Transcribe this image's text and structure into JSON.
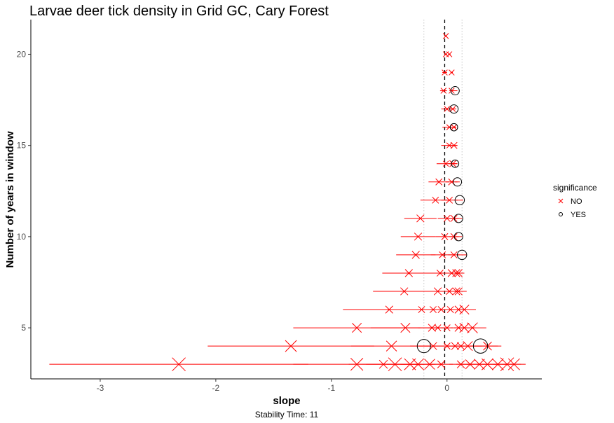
{
  "chart_data": {
    "type": "scatter",
    "title": "Larvae deer tick density in Grid GC, Cary Forest",
    "xlabel": "slope",
    "ylabel": "Number of years in window",
    "caption": "Stability Time: 11",
    "xlim": [
      -3.6,
      0.82
    ],
    "ylim": [
      2.2,
      21.9
    ],
    "x_ticks": [
      -3,
      -2,
      -1,
      0
    ],
    "x_tick_labels": [
      "-3",
      "-2",
      "-1",
      "0"
    ],
    "y_ticks": [
      5,
      10,
      15,
      20
    ],
    "y_tick_labels": [
      "5",
      "10",
      "15",
      "20"
    ],
    "reference_line": -0.02,
    "dotted_lines": [
      -0.2,
      0.13
    ],
    "legend": {
      "title": "significance",
      "placement": "right",
      "entries": [
        {
          "label": "NO",
          "shape": "x",
          "color": "#ff0000"
        },
        {
          "label": "YES",
          "shape": "circle",
          "color": "#000000"
        }
      ]
    },
    "series": [
      {
        "name": "NO",
        "points": [
          {
            "y": 21,
            "slope": -0.01,
            "se": 0.01,
            "size": 0.2
          },
          {
            "y": 20,
            "slope": -0.01,
            "se": 0.01,
            "size": 0.2
          },
          {
            "y": 20,
            "slope": 0.02,
            "se": 0.01,
            "size": 0.2
          },
          {
            "y": 19,
            "slope": -0.02,
            "se": 0.02,
            "size": 0.2
          },
          {
            "y": 19,
            "slope": 0.04,
            "se": 0.01,
            "size": 0.2
          },
          {
            "y": 18,
            "slope": -0.03,
            "se": 0.03,
            "size": 0.2
          },
          {
            "y": 18,
            "slope": 0.04,
            "se": 0.02,
            "size": 0.2
          },
          {
            "y": 17,
            "slope": 0.0,
            "se": 0.05,
            "size": 0.2
          },
          {
            "y": 17,
            "slope": 0.05,
            "se": 0.02,
            "size": 0.2
          },
          {
            "y": 16,
            "slope": 0.02,
            "se": 0.06,
            "size": 0.2
          },
          {
            "y": 16,
            "slope": 0.06,
            "se": 0.02,
            "size": 0.2
          },
          {
            "y": 15,
            "slope": 0.02,
            "se": 0.07,
            "size": 0.2
          },
          {
            "y": 15,
            "slope": 0.06,
            "se": 0.03,
            "size": 0.3
          },
          {
            "y": 14,
            "slope": -0.01,
            "se": 0.08,
            "size": 0.2
          },
          {
            "y": 14,
            "slope": 0.05,
            "se": 0.04,
            "size": 0.3
          },
          {
            "y": 13,
            "slope": -0.07,
            "se": 0.09,
            "size": 0.3
          },
          {
            "y": 13,
            "slope": 0.04,
            "se": 0.05,
            "size": 0.3
          },
          {
            "y": 12,
            "slope": -0.1,
            "se": 0.13,
            "size": 0.3
          },
          {
            "y": 12,
            "slope": 0.02,
            "se": 0.07,
            "size": 0.3
          },
          {
            "y": 11,
            "slope": -0.23,
            "se": 0.14,
            "size": 0.4
          },
          {
            "y": 11,
            "slope": 0.0,
            "se": 0.08,
            "size": 0.3
          },
          {
            "y": 11,
            "slope": 0.06,
            "se": 0.04,
            "size": 0.3
          },
          {
            "y": 10,
            "slope": -0.25,
            "se": 0.15,
            "size": 0.4
          },
          {
            "y": 10,
            "slope": -0.02,
            "se": 0.08,
            "size": 0.3
          },
          {
            "y": 10,
            "slope": 0.06,
            "se": 0.04,
            "size": 0.3
          },
          {
            "y": 9,
            "slope": -0.27,
            "se": 0.17,
            "size": 0.4
          },
          {
            "y": 9,
            "slope": -0.04,
            "se": 0.1,
            "size": 0.3
          },
          {
            "y": 9,
            "slope": 0.06,
            "se": 0.05,
            "size": 0.3
          },
          {
            "y": 8,
            "slope": -0.33,
            "se": 0.23,
            "size": 0.4
          },
          {
            "y": 8,
            "slope": -0.06,
            "se": 0.12,
            "size": 0.3
          },
          {
            "y": 8,
            "slope": 0.04,
            "se": 0.06,
            "size": 0.4
          },
          {
            "y": 8,
            "slope": 0.08,
            "se": 0.05,
            "size": 0.4
          },
          {
            "y": 8,
            "slope": 0.1,
            "se": 0.05,
            "size": 0.4
          },
          {
            "y": 7,
            "slope": -0.37,
            "se": 0.27,
            "size": 0.4
          },
          {
            "y": 7,
            "slope": -0.08,
            "se": 0.14,
            "size": 0.4
          },
          {
            "y": 7,
            "slope": 0.02,
            "se": 0.07,
            "size": 0.3
          },
          {
            "y": 7,
            "slope": 0.08,
            "se": 0.06,
            "size": 0.4
          },
          {
            "y": 7,
            "slope": 0.1,
            "se": 0.07,
            "size": 0.4
          },
          {
            "y": 6,
            "slope": -0.5,
            "se": 0.4,
            "size": 0.4
          },
          {
            "y": 6,
            "slope": -0.22,
            "se": 0.18,
            "size": 0.3
          },
          {
            "y": 6,
            "slope": -0.12,
            "se": 0.1,
            "size": 0.3
          },
          {
            "y": 6,
            "slope": -0.05,
            "se": 0.06,
            "size": 0.3
          },
          {
            "y": 6,
            "slope": 0.03,
            "se": 0.06,
            "size": 0.3
          },
          {
            "y": 6,
            "slope": 0.1,
            "se": 0.08,
            "size": 0.4
          },
          {
            "y": 6,
            "slope": 0.15,
            "se": 0.1,
            "size": 0.6
          },
          {
            "y": 5,
            "slope": -0.78,
            "se": 0.55,
            "size": 0.6
          },
          {
            "y": 5,
            "slope": -0.36,
            "se": 0.3,
            "size": 0.6
          },
          {
            "y": 5,
            "slope": -0.13,
            "se": 0.12,
            "size": 0.4
          },
          {
            "y": 5,
            "slope": -0.08,
            "se": 0.08,
            "size": 0.3
          },
          {
            "y": 5,
            "slope": 0.0,
            "se": 0.05,
            "size": 0.3
          },
          {
            "y": 5,
            "slope": 0.1,
            "se": 0.07,
            "size": 0.4
          },
          {
            "y": 5,
            "slope": 0.15,
            "se": 0.09,
            "size": 0.6
          },
          {
            "y": 5,
            "slope": 0.22,
            "se": 0.12,
            "size": 0.7
          },
          {
            "y": 4,
            "slope": -1.35,
            "se": 0.72,
            "size": 0.8
          },
          {
            "y": 4,
            "slope": -0.48,
            "se": 0.35,
            "size": 0.7
          },
          {
            "y": 4,
            "slope": -0.12,
            "se": 0.12,
            "size": 0.4
          },
          {
            "y": 4,
            "slope": 0.0,
            "se": 0.08,
            "size": 0.3
          },
          {
            "y": 4,
            "slope": 0.07,
            "se": 0.08,
            "size": 0.4
          },
          {
            "y": 4,
            "slope": 0.12,
            "se": 0.1,
            "size": 0.4
          },
          {
            "y": 4,
            "slope": 0.18,
            "se": 0.12,
            "size": 0.6
          },
          {
            "y": 4,
            "slope": 0.35,
            "se": 0.12,
            "size": 0.5
          },
          {
            "y": 3,
            "slope": -2.32,
            "se": 1.12,
            "size": 1.0
          },
          {
            "y": 3,
            "slope": -0.78,
            "se": 0.55,
            "size": 0.9
          },
          {
            "y": 3,
            "slope": -0.55,
            "se": 0.3,
            "size": 0.5
          },
          {
            "y": 3,
            "slope": -0.45,
            "se": 0.25,
            "size": 1.0
          },
          {
            "y": 3,
            "slope": -0.32,
            "se": 0.2,
            "size": 0.8
          },
          {
            "y": 3,
            "slope": -0.25,
            "se": 0.15,
            "size": 0.8
          },
          {
            "y": 3,
            "slope": -0.15,
            "se": 0.12,
            "size": 0.7
          },
          {
            "y": 3,
            "slope": -0.05,
            "se": 0.1,
            "size": 0.4
          },
          {
            "y": 3,
            "slope": 0.12,
            "se": 0.1,
            "size": 0.4
          },
          {
            "y": 3,
            "slope": 0.2,
            "se": 0.12,
            "size": 0.6
          },
          {
            "y": 3,
            "slope": 0.28,
            "se": 0.15,
            "size": 0.7
          },
          {
            "y": 3,
            "slope": 0.35,
            "se": 0.18,
            "size": 0.8
          },
          {
            "y": 3,
            "slope": 0.44,
            "se": 0.13,
            "size": 0.8
          },
          {
            "y": 3,
            "slope": 0.52,
            "se": 0.12,
            "size": 1.0
          },
          {
            "y": 3,
            "slope": 0.58,
            "se": 0.1,
            "size": 0.8
          }
        ]
      },
      {
        "name": "YES",
        "points": [
          {
            "y": 18,
            "slope": 0.07,
            "se": 0.02,
            "size": 0.5
          },
          {
            "y": 17,
            "slope": 0.06,
            "se": 0.02,
            "size": 0.5
          },
          {
            "y": 16,
            "slope": 0.06,
            "se": 0.02,
            "size": 0.4
          },
          {
            "y": 14,
            "slope": 0.07,
            "se": 0.02,
            "size": 0.4
          },
          {
            "y": 13,
            "slope": 0.09,
            "se": 0.02,
            "size": 0.5
          },
          {
            "y": 12,
            "slope": 0.11,
            "se": 0.03,
            "size": 0.6
          },
          {
            "y": 11,
            "slope": 0.1,
            "se": 0.03,
            "size": 0.5
          },
          {
            "y": 10,
            "slope": 0.1,
            "se": 0.03,
            "size": 0.5
          },
          {
            "y": 9,
            "slope": 0.13,
            "se": 0.04,
            "size": 0.6
          },
          {
            "y": 4,
            "slope": -0.2,
            "se": 0.12,
            "size": 1.0
          },
          {
            "y": 4,
            "slope": 0.29,
            "se": 0.15,
            "size": 1.1
          }
        ]
      }
    ]
  }
}
